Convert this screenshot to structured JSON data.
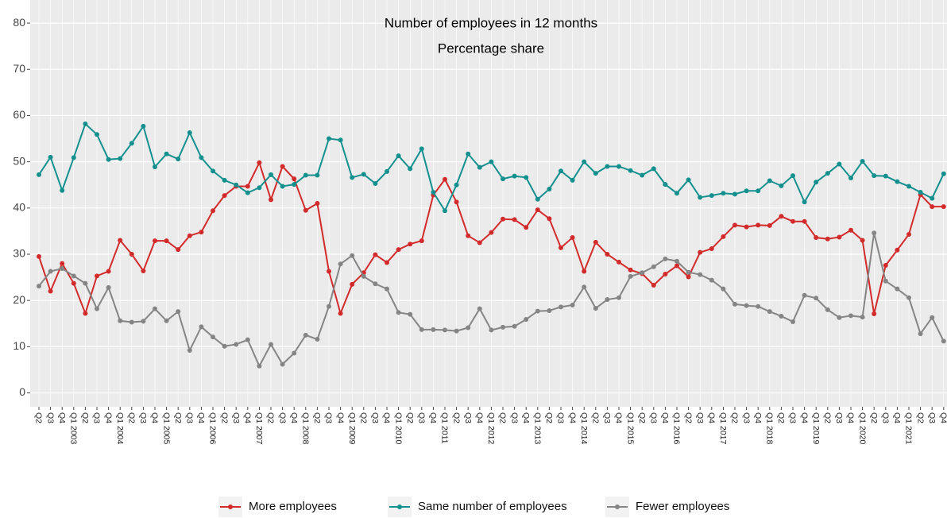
{
  "chart_data": {
    "type": "line",
    "title": "Number of employees in 12 months",
    "subtitle": "Percentage share",
    "categories": [
      "Q2",
      "Q3",
      "Q4",
      "Q1 2003",
      "Q2",
      "Q3",
      "Q4",
      "Q1 2004",
      "Q2",
      "Q3",
      "Q4",
      "Q1 2005",
      "Q2",
      "Q3",
      "Q4",
      "Q1 2006",
      "Q2",
      "Q3",
      "Q4",
      "Q1 2007",
      "Q2",
      "Q3",
      "Q4",
      "Q1 2008",
      "Q2",
      "Q3",
      "Q4",
      "Q1 2009",
      "Q2",
      "Q3",
      "Q4",
      "Q1 2010",
      "Q2",
      "Q3",
      "Q4",
      "Q1 2011",
      "Q2",
      "Q3",
      "Q4",
      "Q1 2012",
      "Q2",
      "Q3",
      "Q4",
      "Q1 2013",
      "Q2",
      "Q3",
      "Q4",
      "Q1 2014",
      "Q2",
      "Q3",
      "Q4",
      "Q1 2015",
      "Q2",
      "Q3",
      "Q4",
      "Q1 2016",
      "Q2",
      "Q3",
      "Q4",
      "Q1 2017",
      "Q2",
      "Q3",
      "Q4",
      "Q1 2018",
      "Q2",
      "Q3",
      "Q4",
      "Q1 2019",
      "Q2",
      "Q3",
      "Q4",
      "Q1 2020",
      "Q2",
      "Q3",
      "Q4",
      "Q1 2021",
      "Q2",
      "Q3",
      "Q4"
    ],
    "series": [
      {
        "name": "More employees",
        "color": "#d32b2b",
        "values": [
          29.5,
          22,
          28,
          23.7,
          17.2,
          25.3,
          26.3,
          33,
          30,
          26.4,
          32.9,
          32.9,
          31,
          34,
          34.8,
          39.4,
          42.7,
          44.7,
          44.7,
          49.8,
          41.8,
          49,
          46.3,
          39.5,
          41,
          26.3,
          17.2,
          23.5,
          26,
          29.9,
          28.2,
          31,
          32.2,
          32.9,
          42.8,
          46.2,
          41.3,
          34,
          32.5,
          34.7,
          37.6,
          37.5,
          35.8,
          39.6,
          37.7,
          31.4,
          33.6,
          26.3,
          32.6,
          30,
          28.3,
          26.6,
          25.8,
          23.3,
          25.7,
          27.5,
          25.1,
          30.4,
          31.2,
          33.8,
          36.3,
          35.9,
          36.3,
          36.2,
          38.2,
          37.1,
          37.1,
          33.6,
          33.3,
          33.7,
          35.2,
          33,
          17.1,
          27.6,
          30.9,
          34.3,
          42.9,
          40.3,
          40.3
        ]
      },
      {
        "name": "Same number of employees",
        "color": "#14908f",
        "values": [
          47.2,
          51,
          43.8,
          50.9,
          58.2,
          55.9,
          50.5,
          50.7,
          54,
          57.7,
          48.9,
          51.7,
          50.6,
          56.3,
          50.9,
          48,
          46,
          45,
          43.3,
          44.4,
          47.2,
          44.7,
          45.1,
          47.1,
          47.1,
          55,
          54.7,
          46.6,
          47.3,
          45.3,
          47.9,
          51.3,
          48.5,
          52.8,
          43.4,
          39.4,
          45,
          51.7,
          48.8,
          50,
          46.3,
          46.9,
          46.6,
          41.9,
          44.1,
          48,
          46,
          50,
          47.5,
          49,
          49,
          48.1,
          47.1,
          48.5,
          45.1,
          43.2,
          46.1,
          42.3,
          42.7,
          43.2,
          43,
          43.7,
          43.7,
          45.9,
          44.8,
          47,
          41.3,
          45.6,
          47.5,
          49.5,
          46.5,
          50.1,
          47,
          46.9,
          45.7,
          44.7,
          43.4,
          42.1,
          47.4
        ]
      },
      {
        "name": "Fewer employees",
        "color": "#858585",
        "values": [
          23.1,
          26.3,
          26.9,
          25.3,
          23.7,
          18.2,
          22.8,
          15.6,
          15.3,
          15.5,
          18.2,
          15.6,
          17.6,
          9.2,
          14.3,
          12.1,
          10.1,
          10.5,
          11.5,
          5.8,
          10.5,
          6.2,
          8.6,
          12.5,
          11.6,
          18.7,
          27.9,
          29.7,
          25.2,
          23.6,
          22.5,
          17.4,
          17,
          13.7,
          13.7,
          13.6,
          13.4,
          14.1,
          18.2,
          13.6,
          14.2,
          14.4,
          15.9,
          17.7,
          17.8,
          18.6,
          19,
          22.9,
          18.3,
          20.2,
          20.6,
          25.2,
          26,
          27.3,
          29,
          28.5,
          26.1,
          25.6,
          24.4,
          22.5,
          19.2,
          18.9,
          18.7,
          17.6,
          16.6,
          15.4,
          21.1,
          20.5,
          18,
          16.3,
          16.7,
          16.4,
          34.6,
          24.2,
          22.5,
          20.6,
          12.8,
          16.3,
          11.2
        ]
      }
    ],
    "ylim": [
      -3,
      85
    ],
    "yticks": [
      0,
      10,
      20,
      30,
      40,
      50,
      60,
      70,
      80
    ],
    "grid": true,
    "legend": "bottom"
  }
}
